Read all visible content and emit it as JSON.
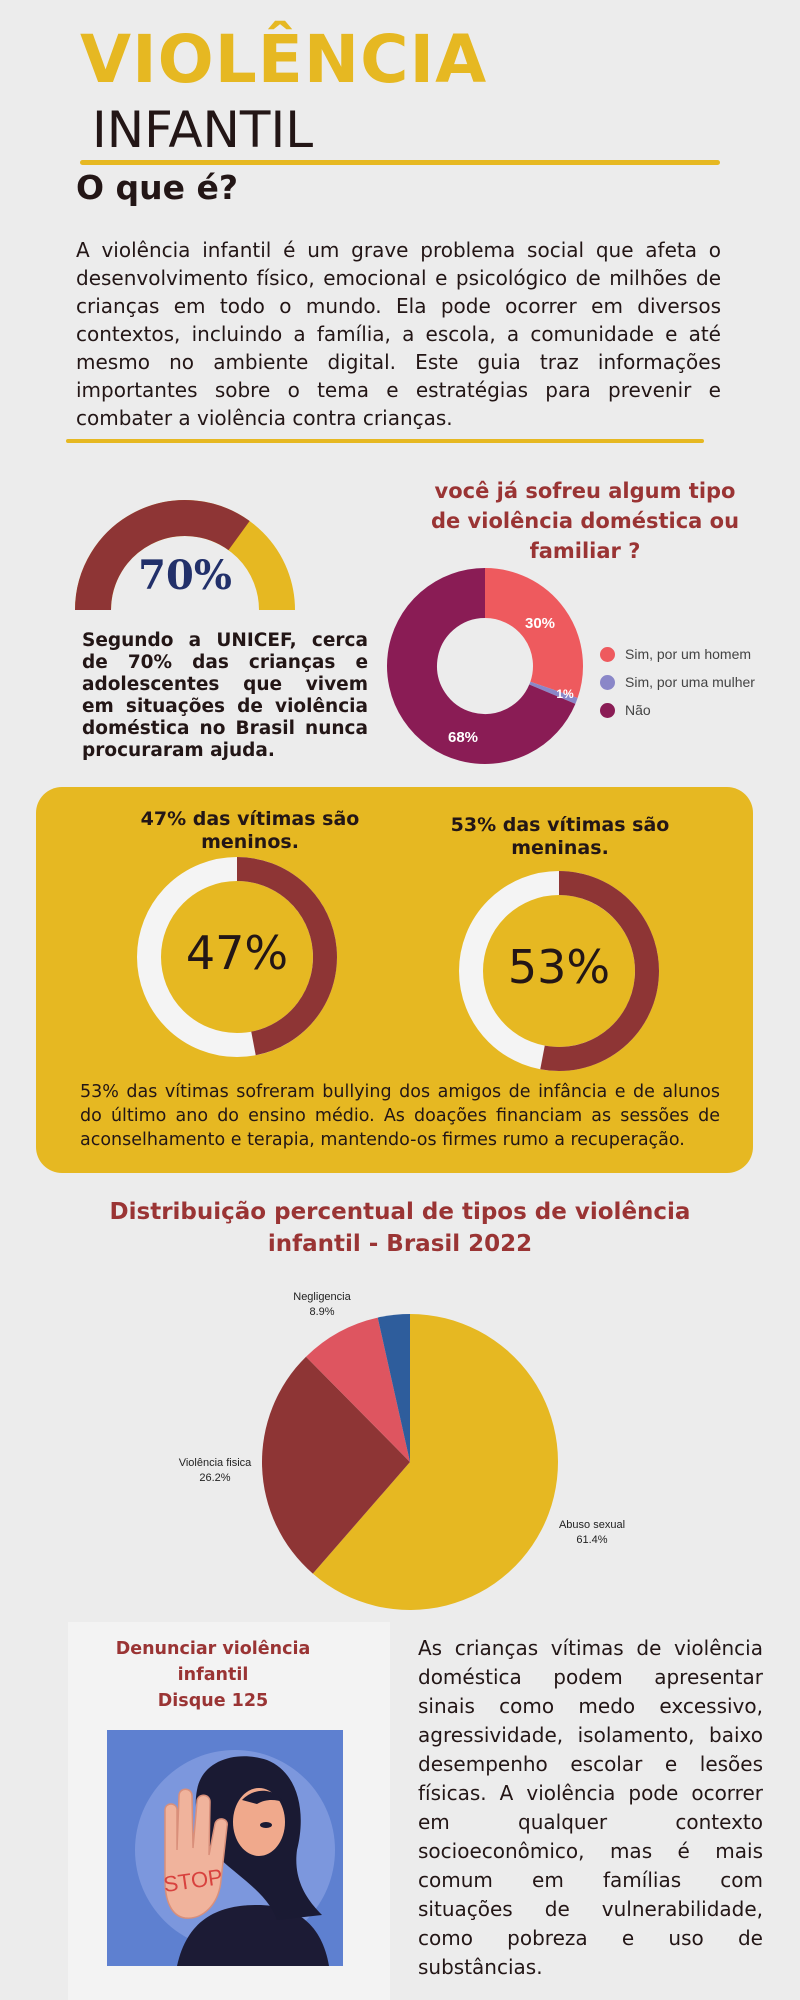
{
  "header": {
    "title": "VIOLÊNCIA",
    "subtitle": "INFANTIL",
    "section_question": "O que é?",
    "intro": "A violência infantil é um grave problema social que afeta o desenvolvimento físico, emocional e psicológico de milhões de crianças em todo o mundo. Ela pode ocorrer em diversos contextos, incluindo a família, a escola, a comunidade e até mesmo no ambiente digital. Este guia traz informações importantes sobre o tema e estratégias para prevenir e combater a violência contra crianças."
  },
  "gauge": {
    "value_label": "70%",
    "value_fraction": 0.7,
    "text": "Segundo a UNICEF, cerca de 70% das crianças e adolescentes que vivem em situações de violência doméstica no Brasil nunca procuraram ajuda.",
    "colors": {
      "main": "#8e3535",
      "rest": "#e6b822"
    }
  },
  "donut": {
    "title": "você já sofreu algum tipo de violência doméstica ou familiar ?",
    "labels": [
      "30%",
      "1%",
      "68%"
    ],
    "legend": [
      "Sim, por um homem",
      "Sim, por uma mulher",
      "Não"
    ]
  },
  "gender": {
    "boys_title": "47% das vítimas são meninos.",
    "boys_value": "47%",
    "girls_title": "53% das vítimas são meninas.",
    "girls_value": "53%",
    "text": "53% das vítimas sofreram bullying dos amigos de infância e de alunos do último ano do ensino médio. As doações financiam as sessões de aconselhamento e terapia, mantendo-os firmes rumo a recuperação."
  },
  "chart_data": [
    {
      "type": "pie",
      "title": "você já sofreu algum tipo de violência doméstica ou familiar ?",
      "categories": [
        "Sim, por um homem",
        "Sim, por uma mulher",
        "Não"
      ],
      "values": [
        30,
        1,
        68
      ],
      "colors": [
        "#ee5a5e",
        "#8a87c8",
        "#8a1c55"
      ],
      "donut": true,
      "legend": "right"
    },
    {
      "type": "pie",
      "title": "47% das vítimas são meninos.",
      "categories": [
        "meninos",
        ""
      ],
      "values": [
        47,
        53
      ],
      "colors": [
        "#8e3535",
        "#f4f4f4"
      ],
      "donut": true
    },
    {
      "type": "pie",
      "title": "53% das vítimas são meninas.",
      "categories": [
        "meninas",
        ""
      ],
      "values": [
        53,
        47
      ],
      "colors": [
        "#8e3535",
        "#f4f4f4"
      ],
      "donut": true
    },
    {
      "type": "pie",
      "title": "Distribuição percentual de tipos de violência infantil - Brasil 2022",
      "categories": [
        "Abuso sexual",
        "Violência fisica",
        "Negligencia",
        ""
      ],
      "values": [
        61.4,
        26.2,
        8.9,
        3.5
      ],
      "labels": [
        {
          "name": "Abuso sexual",
          "value": "61.4%"
        },
        {
          "name": "Violência fisica",
          "value": "26.2%"
        },
        {
          "name": "Negligencia",
          "value": "8.9%"
        }
      ],
      "colors": [
        "#e6b822",
        "#8e3535",
        "#de5560",
        "#2e5d9c"
      ],
      "donut": false
    }
  ],
  "pie": {
    "title": "Distribuição percentual de tipos de violência infantil - Brasil 2022",
    "labels": {
      "abuso_name": "Abuso sexual",
      "abuso_value": "61.4%",
      "fisica_name": "Violência fisica",
      "fisica_value": "26.2%",
      "neg_name": "Negligencia",
      "neg_value": "8.9%"
    }
  },
  "card": {
    "title_line1": "Denunciar violência",
    "title_line2": "infantil",
    "title_line3": "Disque 125",
    "stop_sign": "STOP",
    "side_text": "As crianças vítimas de violência doméstica podem apresentar sinais como medo excessivo, agressividade, isolamento, baixo desempenho escolar e lesões físicas. A violência pode ocorrer em qualquer contexto socioeconômico, mas é mais comum em famílias com situações de vulnerabilidade, como pobreza e uso de substâncias."
  }
}
